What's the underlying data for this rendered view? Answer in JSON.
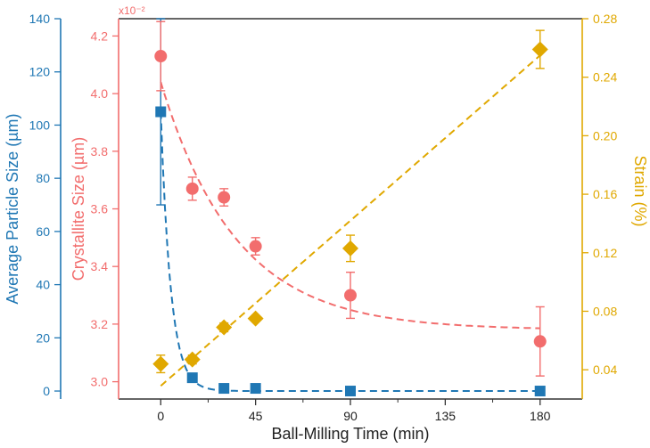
{
  "colors": {
    "particle": "#1f77b4",
    "crystallite": "#f26d6d",
    "strain": "#e0a800",
    "axis": "#333333"
  },
  "chart_data": {
    "type": "scatter",
    "xlabel": "Ball-Milling Time (min)",
    "xlim": [
      -20,
      200
    ],
    "x_ticks": [
      "0",
      "45",
      "90",
      "135",
      "180"
    ],
    "axes": {
      "left": {
        "label": "Average Particle Size (µm)",
        "ylim": [
          -3,
          140
        ],
        "ticks": [
          "0",
          "20",
          "40",
          "60",
          "80",
          "100",
          "120",
          "140"
        ]
      },
      "middle": {
        "label": "Crystallite Size (µm)",
        "multiplier": "x10⁻²",
        "ylim": [
          2.94,
          4.26
        ],
        "ticks": [
          "3.0",
          "3.2",
          "3.4",
          "3.6",
          "3.8",
          "4.0",
          "4.2"
        ]
      },
      "right": {
        "label": "Strain (%)",
        "ylim": [
          0.02,
          0.28
        ],
        "ticks": [
          "0.04",
          "0.08",
          "0.12",
          "0.16",
          "0.20",
          "0.24",
          "0.28"
        ]
      }
    },
    "series": [
      {
        "axis": "left",
        "marker": "square",
        "x": [
          0,
          15,
          30,
          45,
          90,
          180
        ],
        "y": [
          105,
          5,
          1,
          1,
          0,
          0
        ],
        "err": [
          35,
          0,
          0,
          0,
          0,
          0
        ],
        "fit": {
          "type": "exponential",
          "a": 105,
          "k": 0.21,
          "c": 0
        }
      },
      {
        "axis": "middle",
        "marker": "circle",
        "x": [
          0,
          15,
          30,
          45,
          90,
          180
        ],
        "y": [
          4.13,
          3.67,
          3.64,
          3.47,
          3.3,
          3.14
        ],
        "err": [
          0.12,
          0.04,
          0.03,
          0.03,
          0.08,
          0.12
        ],
        "fit": {
          "type": "exponential",
          "a": 0.86,
          "k": 0.028,
          "c": 3.18
        }
      },
      {
        "axis": "right",
        "marker": "diamond",
        "x": [
          0,
          15,
          30,
          45,
          90,
          180
        ],
        "y": [
          0.044,
          0.047,
          0.069,
          0.075,
          0.123,
          0.259
        ],
        "err": [
          0.006,
          0.003,
          0.003,
          0.0,
          0.009,
          0.013
        ],
        "fit": {
          "type": "linear",
          "slope": 0.001255,
          "intercept": 0.029
        }
      }
    ]
  }
}
